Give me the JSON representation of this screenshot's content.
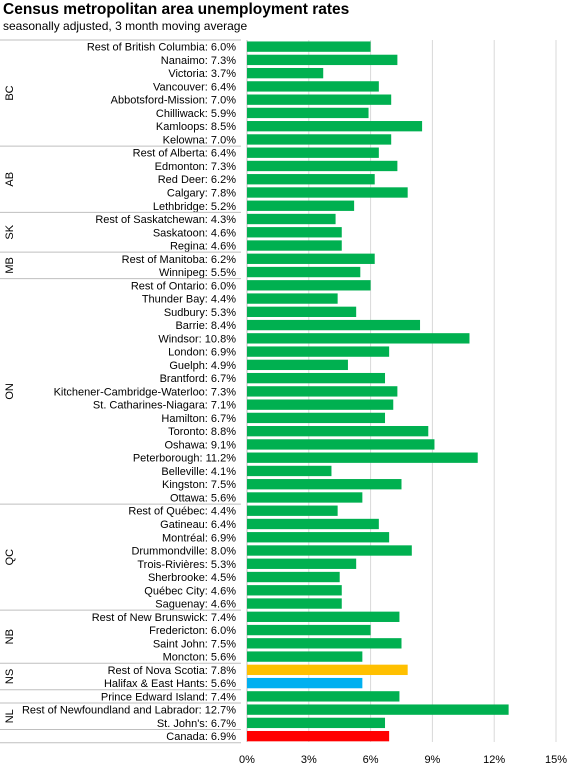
{
  "chart_data": {
    "type": "bar",
    "orientation": "horizontal",
    "title": "Census metropolitan area unemployment rates",
    "subtitle": "seasonally adjusted, 3 month moving average",
    "xlim": [
      0,
      15
    ],
    "xticks": [
      "0%",
      "3%",
      "6%",
      "9%",
      "12%",
      "15%"
    ],
    "grid": true,
    "colors": {
      "default": "#00b050",
      "highlight_ns": "#ffc000",
      "highlight_halifax": "#00b0f0",
      "canada": "#ff0000"
    },
    "groups": [
      {
        "name": "BC",
        "rows": [
          {
            "label": "Rest of British Columbia: 6.0%",
            "value": 6.0
          },
          {
            "label": "Nanaimo: 7.3%",
            "value": 7.3
          },
          {
            "label": "Victoria: 3.7%",
            "value": 3.7
          },
          {
            "label": "Vancouver: 6.4%",
            "value": 6.4
          },
          {
            "label": "Abbotsford-Mission: 7.0%",
            "value": 7.0
          },
          {
            "label": "Chilliwack: 5.9%",
            "value": 5.9
          },
          {
            "label": "Kamloops: 8.5%",
            "value": 8.5
          },
          {
            "label": "Kelowna: 7.0%",
            "value": 7.0
          }
        ]
      },
      {
        "name": "AB",
        "rows": [
          {
            "label": "Rest of Alberta: 6.4%",
            "value": 6.4
          },
          {
            "label": "Edmonton: 7.3%",
            "value": 7.3
          },
          {
            "label": "Red Deer: 6.2%",
            "value": 6.2
          },
          {
            "label": "Calgary: 7.8%",
            "value": 7.8
          },
          {
            "label": "Lethbridge: 5.2%",
            "value": 5.2
          }
        ]
      },
      {
        "name": "SK",
        "rows": [
          {
            "label": "Rest of Saskatchewan: 4.3%",
            "value": 4.3
          },
          {
            "label": "Saskatoon: 4.6%",
            "value": 4.6
          },
          {
            "label": "Regina: 4.6%",
            "value": 4.6
          }
        ]
      },
      {
        "name": "MB",
        "rows": [
          {
            "label": "Rest of Manitoba: 6.2%",
            "value": 6.2
          },
          {
            "label": "Winnipeg: 5.5%",
            "value": 5.5
          }
        ]
      },
      {
        "name": "ON",
        "rows": [
          {
            "label": "Rest of Ontario: 6.0%",
            "value": 6.0
          },
          {
            "label": "Thunder Bay: 4.4%",
            "value": 4.4
          },
          {
            "label": "Sudbury: 5.3%",
            "value": 5.3
          },
          {
            "label": "Barrie: 8.4%",
            "value": 8.4
          },
          {
            "label": "Windsor: 10.8%",
            "value": 10.8
          },
          {
            "label": "London: 6.9%",
            "value": 6.9
          },
          {
            "label": "Guelph: 4.9%",
            "value": 4.9
          },
          {
            "label": "Brantford: 6.7%",
            "value": 6.7
          },
          {
            "label": "Kitchener-Cambridge-Waterloo: 7.3%",
            "value": 7.3
          },
          {
            "label": "St. Catharines-Niagara: 7.1%",
            "value": 7.1
          },
          {
            "label": "Hamilton: 6.7%",
            "value": 6.7
          },
          {
            "label": "Toronto: 8.8%",
            "value": 8.8
          },
          {
            "label": "Oshawa: 9.1%",
            "value": 9.1
          },
          {
            "label": "Peterborough: 11.2%",
            "value": 11.2
          },
          {
            "label": "Belleville: 4.1%",
            "value": 4.1
          },
          {
            "label": "Kingston: 7.5%",
            "value": 7.5
          },
          {
            "label": "Ottawa: 5.6%",
            "value": 5.6
          }
        ]
      },
      {
        "name": "QC",
        "rows": [
          {
            "label": "Rest of Québec: 4.4%",
            "value": 4.4
          },
          {
            "label": "Gatineau: 6.4%",
            "value": 6.4
          },
          {
            "label": "Montréal: 6.9%",
            "value": 6.9
          },
          {
            "label": "Drummondville: 8.0%",
            "value": 8.0
          },
          {
            "label": "Trois-Rivières: 5.3%",
            "value": 5.3
          },
          {
            "label": "Sherbrooke: 4.5%",
            "value": 4.5
          },
          {
            "label": "Québec City: 4.6%",
            "value": 4.6
          },
          {
            "label": "Saguenay: 4.6%",
            "value": 4.6
          }
        ]
      },
      {
        "name": "NB",
        "rows": [
          {
            "label": "Rest of New Brunswick: 7.4%",
            "value": 7.4
          },
          {
            "label": "Fredericton: 6.0%",
            "value": 6.0
          },
          {
            "label": "Saint John: 7.5%",
            "value": 7.5
          },
          {
            "label": "Moncton: 5.6%",
            "value": 5.6
          }
        ]
      },
      {
        "name": "NS",
        "rows": [
          {
            "label": "Rest of Nova Scotia: 7.8%",
            "value": 7.8,
            "color": "#ffc000"
          },
          {
            "label": "Halifax & East Hants: 5.6%",
            "value": 5.6,
            "color": "#00b0f0"
          }
        ]
      },
      {
        "name": "",
        "rows": [
          {
            "label": "Prince Edward Island: 7.4%",
            "value": 7.4
          }
        ]
      },
      {
        "name": "NL",
        "rows": [
          {
            "label": "Rest of Newfoundland and Labrador: 12.7%",
            "value": 12.7
          },
          {
            "label": "St. John's: 6.7%",
            "value": 6.7
          }
        ]
      },
      {
        "name": "",
        "rows": [
          {
            "label": "Canada: 6.9%",
            "value": 6.9,
            "color": "#ff0000"
          }
        ]
      }
    ]
  }
}
